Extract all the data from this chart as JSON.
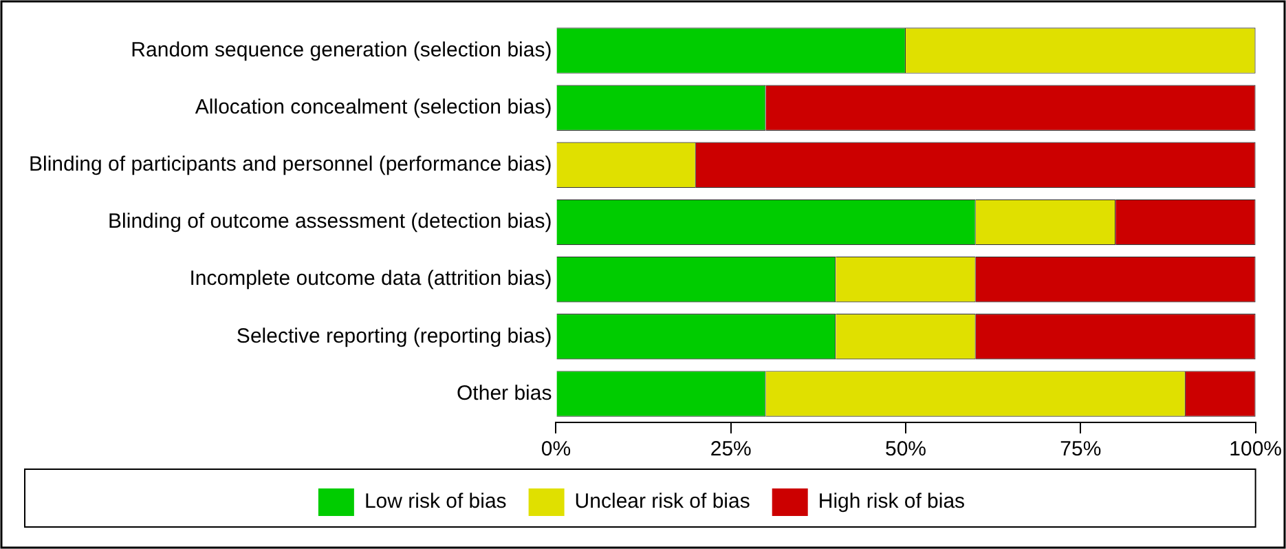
{
  "chart_data": {
    "type": "bar",
    "orientation": "horizontal",
    "stacked": true,
    "categories": [
      "Random sequence generation (selection bias)",
      "Allocation concealment (selection bias)",
      "Blinding of participants and personnel (performance bias)",
      "Blinding of outcome assessment (detection bias)",
      "Incomplete outcome data (attrition bias)",
      "Selective reporting (reporting bias)",
      "Other bias"
    ],
    "series": [
      {
        "name": "Low risk of bias",
        "color": "#00cc00",
        "values": [
          50,
          30,
          0,
          60,
          40,
          40,
          30
        ]
      },
      {
        "name": "Unclear risk of bias",
        "color": "#e0e000",
        "values": [
          50,
          0,
          20,
          20,
          20,
          20,
          60
        ]
      },
      {
        "name": "High risk of bias",
        "color": "#cc0000",
        "values": [
          0,
          70,
          80,
          20,
          40,
          40,
          10
        ]
      }
    ],
    "xlim": [
      0,
      100
    ],
    "xticks": [
      {
        "value": 0,
        "label": "0%"
      },
      {
        "value": 25,
        "label": "25%"
      },
      {
        "value": 50,
        "label": "50%"
      },
      {
        "value": 75,
        "label": "75%"
      },
      {
        "value": 100,
        "label": "100%"
      }
    ],
    "grid": false,
    "legend": "bottom"
  }
}
